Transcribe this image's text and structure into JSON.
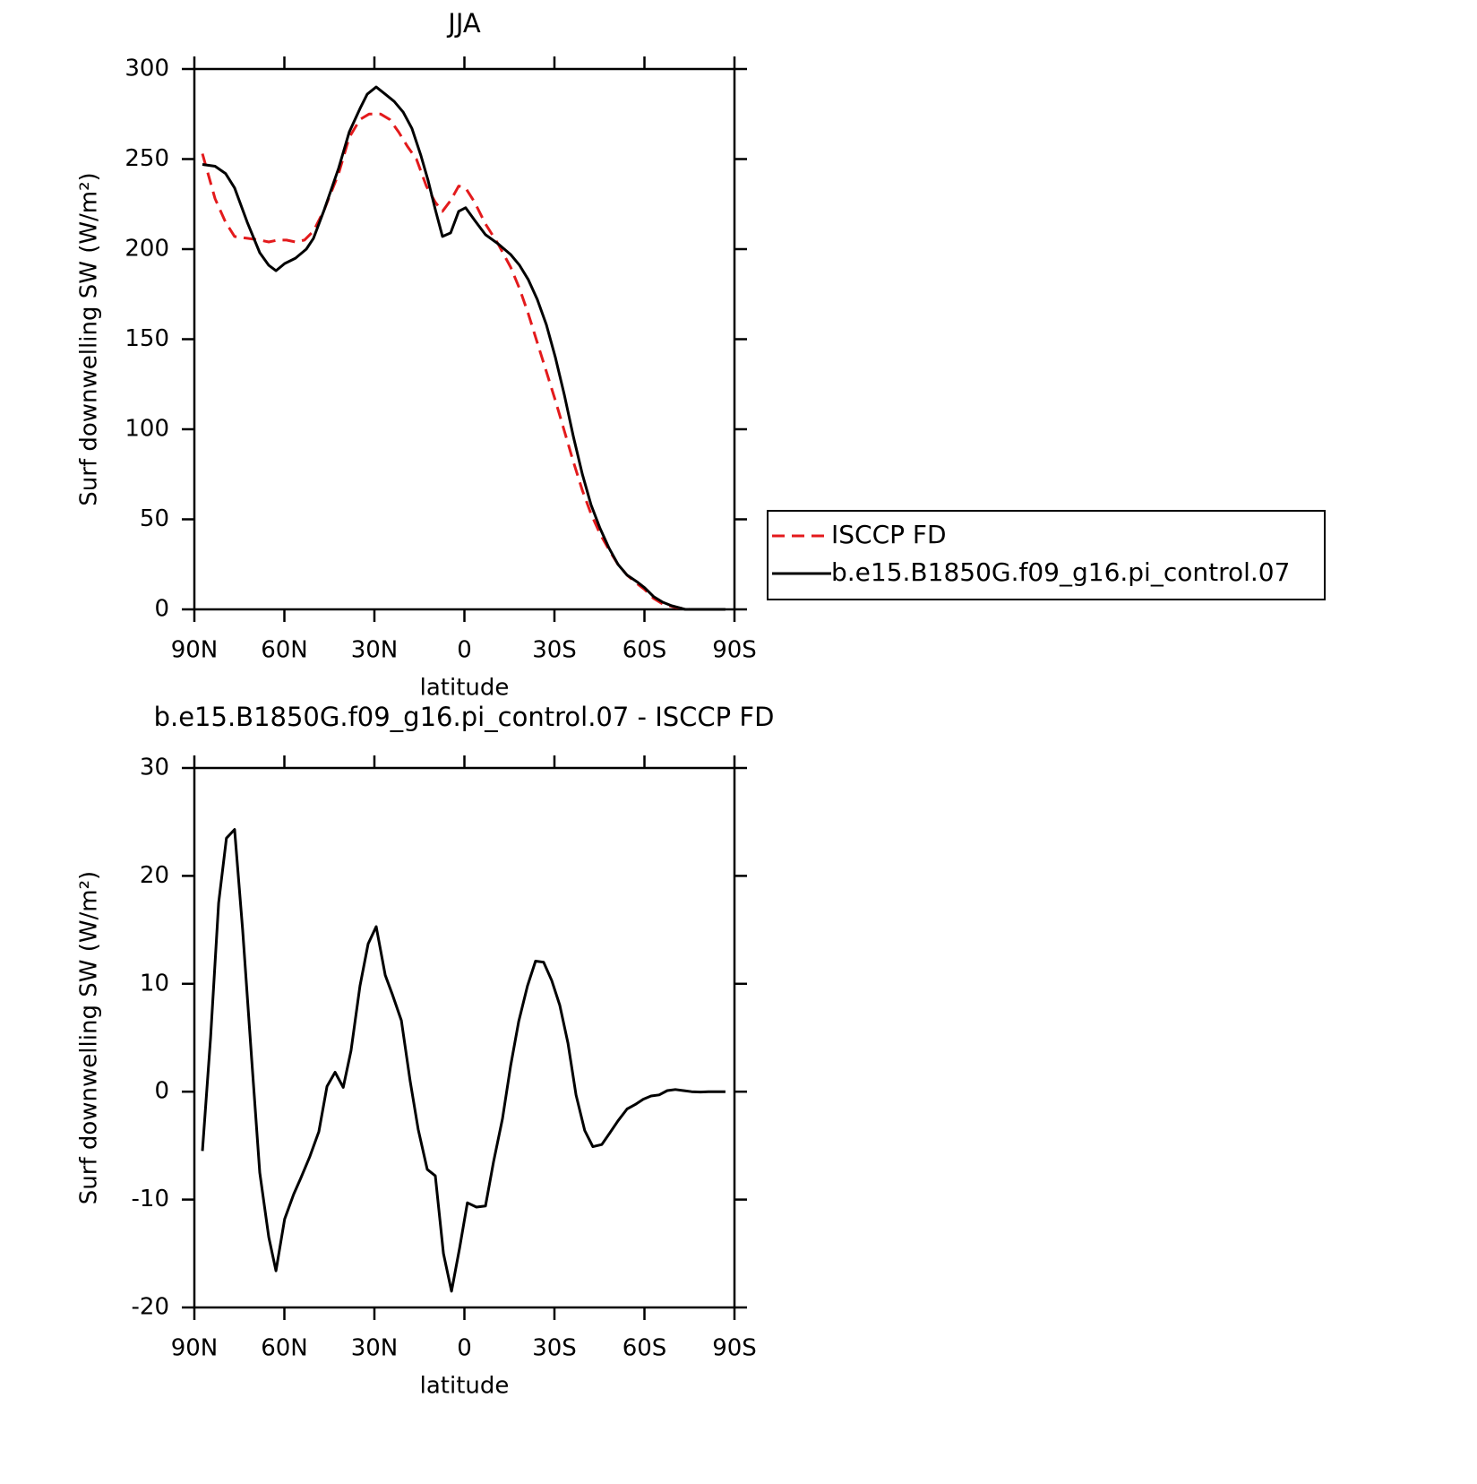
{
  "chart_data": [
    {
      "type": "line",
      "title": "JJA",
      "x_label": "latitude",
      "y_label": "Surf downwelling SW (W/m²)",
      "xlim": [
        90,
        -90
      ],
      "xticks": [
        {
          "value": 90,
          "label": "90N"
        },
        {
          "value": 60,
          "label": "60N"
        },
        {
          "value": 30,
          "label": "30N"
        },
        0,
        {
          "value": -30,
          "label": "30S"
        },
        {
          "value": -60,
          "label": "60S"
        },
        {
          "value": -90,
          "label": "90S"
        }
      ],
      "ylim": [
        0,
        300
      ],
      "yticks": [
        0,
        50,
        100,
        150,
        200,
        250,
        300
      ],
      "legend": "right",
      "series": [
        {
          "name": "ISCCP FD",
          "color": "#e31a1c",
          "line_style": "dashed",
          "x": [
            87.3,
            83.1,
            79.6,
            76.6,
            72.4,
            68.2,
            65.2,
            62.2,
            59.3,
            56.3,
            53.3,
            50.3,
            46.7,
            41.9,
            38.4,
            34.8,
            31.8,
            27.9,
            24.9,
            21.9,
            19.0,
            16.0,
            12.7,
            9.7,
            7.3,
            4.6,
            1.9,
            -0.4,
            -3.4,
            -7.0,
            -11.2,
            -15.4,
            -18.4,
            -21.3,
            -24.3,
            -27.3,
            -30.3,
            -33.3,
            -36.3,
            -39.3,
            -42.2,
            -45.2,
            -48.2,
            -51.2,
            -54.2,
            -57.8,
            -60.1,
            -63.1,
            -66.1,
            -70.6,
            -75.1,
            -87.0
          ],
          "values": [
            253,
            228,
            215,
            207,
            206,
            205,
            204,
            205,
            205,
            204,
            205,
            210,
            222,
            242,
            262,
            272,
            275,
            275,
            272,
            265,
            257,
            250,
            235,
            226,
            221,
            227,
            235,
            234,
            226,
            214,
            203,
            190,
            178,
            164,
            148,
            132,
            116,
            99,
            82,
            66,
            53,
            42,
            33,
            25,
            19,
            14,
            11,
            6,
            3,
            1,
            0,
            0
          ]
        },
        {
          "name": "b.e15.B1850G.f09_g16.pi_control.07",
          "color": "#000000",
          "line_style": "solid",
          "x": [
            87.3,
            83.1,
            79.6,
            76.6,
            72.4,
            68.2,
            65.2,
            62.8,
            59.9,
            56.3,
            52.7,
            50.3,
            46.7,
            41.9,
            38.4,
            34.8,
            32.4,
            29.4,
            26.4,
            23.4,
            20.4,
            17.5,
            14.5,
            12.1,
            9.7,
            7.3,
            4.6,
            1.9,
            -0.4,
            -3.4,
            -7.0,
            -11.2,
            -15.4,
            -18.4,
            -21.3,
            -24.3,
            -27.3,
            -30.3,
            -33.3,
            -36.3,
            -39.3,
            -42.2,
            -45.2,
            -48.2,
            -51.2,
            -54.2,
            -57.8,
            -60.1,
            -63.1,
            -66.1,
            -69.1,
            -73.6,
            -78.1,
            -87.0
          ],
          "values": [
            247,
            246,
            242,
            234,
            215,
            198,
            191,
            188,
            192,
            195,
            200,
            206,
            222,
            245,
            265,
            278,
            286,
            290,
            286,
            282,
            276,
            267,
            252,
            238,
            222,
            207,
            209,
            221,
            223,
            216,
            208,
            203,
            197,
            191,
            183,
            172,
            158,
            140,
            119,
            96,
            75,
            58,
            45,
            34,
            25,
            19,
            15,
            12,
            7,
            4,
            2,
            0,
            0,
            0
          ]
        }
      ]
    },
    {
      "type": "line",
      "title": "b.e15.B1850G.f09_g16.pi_control.07 - ISCCP FD",
      "x_label": "latitude",
      "y_label": "Surf downwelling SW (W/m²)",
      "xlim": [
        90,
        -90
      ],
      "xticks": [
        {
          "value": 90,
          "label": "90N"
        },
        {
          "value": 60,
          "label": "60N"
        },
        {
          "value": 30,
          "label": "30N"
        },
        0,
        {
          "value": -30,
          "label": "30S"
        },
        {
          "value": -60,
          "label": "60S"
        },
        {
          "value": -90,
          "label": "90S"
        }
      ],
      "ylim": [
        -20,
        30
      ],
      "yticks": [
        -20,
        -10,
        0,
        10,
        20,
        30
      ],
      "color": "#000000",
      "x": [
        87.3,
        84.6,
        81.9,
        79.3,
        76.6,
        73.9,
        70.9,
        68.2,
        65.2,
        62.8,
        59.9,
        56.9,
        54.5,
        51.5,
        48.5,
        45.8,
        43.1,
        40.4,
        37.8,
        34.8,
        32.1,
        29.4,
        26.4,
        24.0,
        21.0,
        18.1,
        15.4,
        12.4,
        9.7,
        7.0,
        4.3,
        1.6,
        -1.0,
        -4.0,
        -7.0,
        -9.7,
        -12.7,
        -15.4,
        -18.1,
        -21.0,
        -23.7,
        -26.4,
        -29.1,
        -31.8,
        -34.5,
        -37.2,
        -40.1,
        -42.8,
        -45.8,
        -48.5,
        -51.2,
        -54.2,
        -56.9,
        -59.6,
        -62.2,
        -64.9,
        -67.6,
        -70.3,
        -73.0,
        -75.7,
        -78.7,
        -81.3,
        -84.0,
        -87.0
      ],
      "values": [
        -5.5,
        5,
        17.5,
        23.5,
        24.3,
        15,
        3,
        -7.5,
        -13.5,
        -16.6,
        -11.8,
        -9.5,
        -8,
        -6,
        -3.7,
        0.5,
        1.8,
        0.4,
        3.8,
        9.8,
        13.7,
        15.3,
        10.8,
        9,
        6.6,
        1,
        -3.5,
        -7.2,
        -7.8,
        -15,
        -18.5,
        -14.5,
        -10.3,
        -10.7,
        -10.6,
        -6.5,
        -2.5,
        2.4,
        6.5,
        9.8,
        12.1,
        12,
        10.3,
        8,
        4.5,
        -0.3,
        -3.6,
        -5.1,
        -4.9,
        -3.8,
        -2.7,
        -1.6,
        -1.2,
        -0.7,
        -0.4,
        -0.3,
        0.1,
        0.2,
        0.1,
        0,
        -0.03,
        0,
        0,
        0
      ]
    }
  ]
}
